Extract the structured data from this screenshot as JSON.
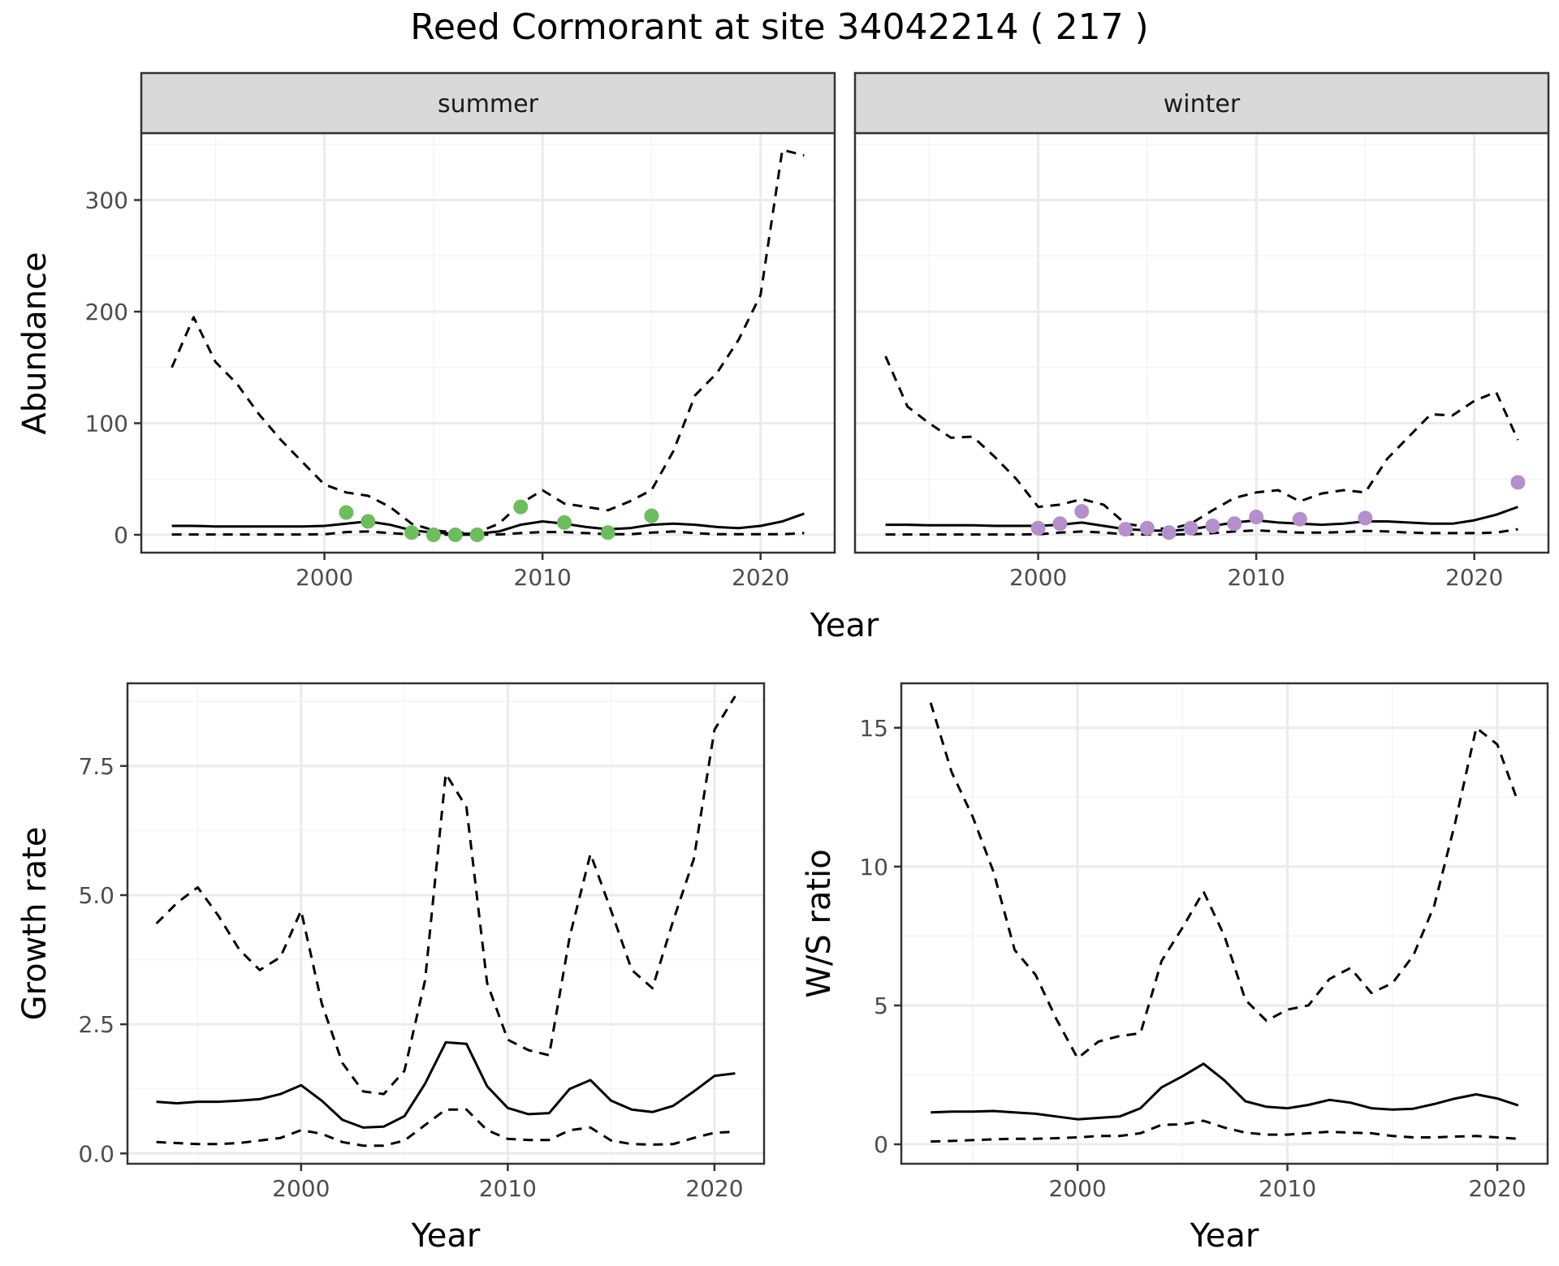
{
  "title": "Reed Cormorant at site 34042214 ( 217 )",
  "colors": {
    "summer_points": "#6cbd5e",
    "winter_points": "#b48fcc",
    "lines": "#000000",
    "strip_fill": "#d9d9d9",
    "grid_major": "#ebebeb",
    "grid_minor": "#f4f4f4",
    "panel_border": "#333333"
  },
  "chart_data": [
    {
      "type": "line",
      "facet": "summer",
      "xlabel": "Year",
      "ylabel": "Abundance",
      "xlim": [
        1991.6,
        2023.4
      ],
      "ylim": [
        -16,
        360
      ],
      "xticks": [
        2000,
        2010,
        2020
      ],
      "yticks": [
        0,
        100,
        200,
        300
      ],
      "x": [
        1993,
        1994,
        1995,
        1996,
        1997,
        1998,
        1999,
        2000,
        2001,
        2002,
        2003,
        2004,
        2005,
        2006,
        2007,
        2008,
        2009,
        2010,
        2011,
        2012,
        2013,
        2014,
        2015,
        2016,
        2017,
        2018,
        2019,
        2020,
        2021,
        2022
      ],
      "series": [
        {
          "style": "solid",
          "values": [
            8,
            8,
            7.5,
            7.5,
            7.5,
            7.5,
            7.5,
            8,
            10,
            12,
            9,
            4,
            2,
            1,
            1,
            3,
            9,
            12,
            10,
            7,
            5,
            6,
            9,
            10,
            9,
            7,
            6,
            8,
            12,
            19
          ]
        },
        {
          "style": "dashed",
          "values": [
            150,
            195,
            155,
            135,
            108,
            85,
            65,
            45,
            38,
            35,
            25,
            10,
            4,
            2,
            2,
            10,
            28,
            40,
            28,
            25,
            22,
            30,
            40,
            75,
            125,
            145,
            175,
            215,
            345,
            340
          ]
        },
        {
          "style": "dashed",
          "values": [
            0.3,
            0.3,
            0.3,
            0.3,
            0.3,
            0.3,
            0.3,
            0.5,
            2.5,
            3,
            1.5,
            0.3,
            0.2,
            0.1,
            0.1,
            0.3,
            1.5,
            2.5,
            2.5,
            1.5,
            0.5,
            0.5,
            2,
            3,
            1.5,
            0.5,
            0.5,
            0.5,
            0.5,
            1.5
          ]
        }
      ],
      "points": {
        "x": [
          2001,
          2002,
          2004,
          2005,
          2006,
          2007,
          2009,
          2011,
          2013,
          2015
        ],
        "values": [
          20,
          12,
          2,
          0,
          0,
          0,
          25,
          11,
          2,
          17
        ]
      }
    },
    {
      "type": "line",
      "facet": "winter",
      "xlabel": "Year",
      "ylabel": "Abundance",
      "xlim": [
        1991.6,
        2023.4
      ],
      "ylim": [
        -16,
        360
      ],
      "xticks": [
        2000,
        2010,
        2020
      ],
      "yticks": [
        0,
        100,
        200,
        300
      ],
      "x": [
        1993,
        1994,
        1995,
        1996,
        1997,
        1998,
        1999,
        2000,
        2001,
        2002,
        2003,
        2004,
        2005,
        2006,
        2007,
        2008,
        2009,
        2010,
        2011,
        2012,
        2013,
        2014,
        2015,
        2016,
        2017,
        2018,
        2019,
        2020,
        2021,
        2022
      ],
      "series": [
        {
          "style": "solid",
          "values": [
            9,
            9,
            8.5,
            8.5,
            8.5,
            8,
            8,
            8,
            9,
            11,
            8,
            5,
            4,
            3.5,
            5,
            8,
            11,
            13,
            11,
            10,
            9,
            10,
            12,
            12,
            11,
            10,
            10,
            13,
            18,
            25
          ]
        },
        {
          "style": "dashed",
          "values": [
            160,
            115,
            100,
            87,
            88,
            70,
            50,
            25,
            27,
            32,
            27,
            10,
            7,
            5,
            10,
            22,
            33,
            38,
            40,
            30,
            37,
            40,
            38,
            68,
            88,
            108,
            107,
            120,
            128,
            85
          ]
        },
        {
          "style": "dashed",
          "values": [
            0.3,
            0.3,
            0.3,
            0.3,
            0.3,
            0.3,
            0.3,
            0.5,
            2,
            3,
            2,
            0.5,
            0.3,
            0.2,
            0.5,
            1.5,
            3,
            4,
            3,
            2,
            2,
            2.5,
            3.5,
            3,
            2,
            1.5,
            1.5,
            1.5,
            2,
            5
          ]
        }
      ],
      "points": {
        "x": [
          2000,
          2001,
          2002,
          2004,
          2005,
          2006,
          2007,
          2008,
          2009,
          2010,
          2012,
          2015,
          2022
        ],
        "values": [
          6,
          10,
          21,
          5,
          6,
          2,
          6,
          8,
          10,
          16,
          14,
          15,
          47
        ]
      }
    },
    {
      "type": "line",
      "xlabel": "Year",
      "ylabel": "Growth rate",
      "xlim": [
        1991.6,
        2022.4
      ],
      "ylim": [
        -0.2,
        9.1
      ],
      "xticks": [
        2000,
        2010,
        2020
      ],
      "yticks": [
        0.0,
        2.5,
        5.0,
        7.5
      ],
      "ytick_labels": [
        "0.0",
        "2.5",
        "5.0",
        "7.5"
      ],
      "x": [
        1993,
        1994,
        1995,
        1996,
        1997,
        1998,
        1999,
        2000,
        2001,
        2002,
        2003,
        2004,
        2005,
        2006,
        2007,
        2008,
        2009,
        2010,
        2011,
        2012,
        2013,
        2014,
        2015,
        2016,
        2017,
        2018,
        2019,
        2020,
        2021
      ],
      "series": [
        {
          "style": "solid",
          "values": [
            1.0,
            0.97,
            1.0,
            1.0,
            1.02,
            1.05,
            1.15,
            1.32,
            1.02,
            0.65,
            0.5,
            0.52,
            0.72,
            1.35,
            2.15,
            2.12,
            1.3,
            0.88,
            0.76,
            0.78,
            1.25,
            1.42,
            1.02,
            0.85,
            0.8,
            0.92,
            1.2,
            1.5,
            1.55
          ]
        },
        {
          "style": "dashed",
          "values": [
            4.45,
            4.85,
            5.15,
            4.6,
            3.95,
            3.55,
            3.8,
            4.7,
            2.9,
            1.75,
            1.2,
            1.15,
            1.6,
            3.35,
            7.35,
            6.7,
            3.3,
            2.2,
            2.0,
            1.9,
            4.2,
            5.8,
            4.7,
            3.55,
            3.2,
            4.5,
            5.7,
            8.2,
            8.85
          ]
        },
        {
          "style": "dashed",
          "values": [
            0.22,
            0.2,
            0.18,
            0.18,
            0.2,
            0.25,
            0.3,
            0.45,
            0.38,
            0.22,
            0.15,
            0.15,
            0.25,
            0.55,
            0.85,
            0.85,
            0.45,
            0.28,
            0.26,
            0.26,
            0.45,
            0.5,
            0.25,
            0.18,
            0.17,
            0.18,
            0.3,
            0.4,
            0.42
          ]
        }
      ]
    },
    {
      "type": "line",
      "xlabel": "Year",
      "ylabel": "W/S ratio",
      "xlim": [
        1991.6,
        2022.4
      ],
      "ylim": [
        -0.7,
        16.6
      ],
      "xticks": [
        2000,
        2010,
        2020
      ],
      "yticks": [
        0,
        5,
        10,
        15
      ],
      "x": [
        1993,
        1994,
        1995,
        1996,
        1997,
        1998,
        1999,
        2000,
        2001,
        2002,
        2003,
        2004,
        2005,
        2006,
        2007,
        2008,
        2009,
        2010,
        2011,
        2012,
        2013,
        2014,
        2015,
        2016,
        2017,
        2018,
        2019,
        2020,
        2021
      ],
      "series": [
        {
          "style": "solid",
          "values": [
            1.15,
            1.18,
            1.18,
            1.2,
            1.15,
            1.1,
            1.0,
            0.9,
            0.95,
            1.0,
            1.3,
            2.05,
            2.45,
            2.9,
            2.3,
            1.55,
            1.35,
            1.3,
            1.42,
            1.6,
            1.5,
            1.3,
            1.25,
            1.28,
            1.45,
            1.65,
            1.8,
            1.65,
            1.4
          ]
        },
        {
          "style": "dashed",
          "values": [
            15.9,
            13.4,
            11.8,
            9.8,
            7.0,
            6.1,
            4.5,
            3.1,
            3.7,
            3.9,
            4.0,
            6.6,
            7.8,
            9.1,
            7.5,
            5.2,
            4.45,
            4.85,
            5.0,
            5.95,
            6.35,
            5.45,
            5.8,
            6.8,
            8.6,
            11.6,
            15.0,
            14.4,
            12.3
          ]
        },
        {
          "style": "dashed",
          "values": [
            0.1,
            0.12,
            0.15,
            0.18,
            0.2,
            0.2,
            0.22,
            0.25,
            0.3,
            0.3,
            0.4,
            0.7,
            0.72,
            0.85,
            0.6,
            0.42,
            0.35,
            0.35,
            0.4,
            0.45,
            0.42,
            0.4,
            0.3,
            0.25,
            0.25,
            0.28,
            0.3,
            0.25,
            0.2
          ]
        }
      ]
    }
  ]
}
